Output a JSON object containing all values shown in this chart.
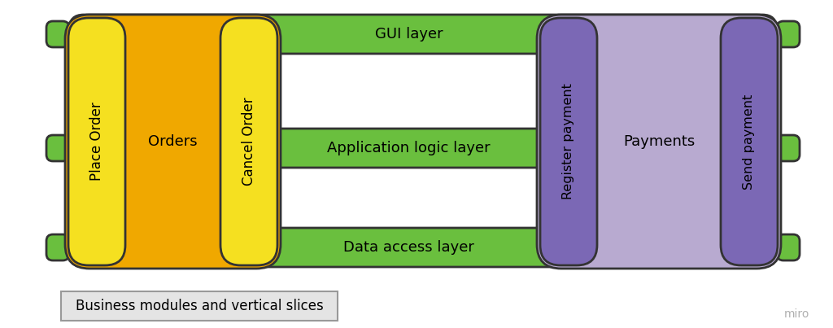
{
  "bg_color": "#ffffff",
  "fig_width": 10.24,
  "fig_height": 4.03,
  "green": "#6abf3e",
  "yellow": "#f5e020",
  "orange": "#f0a800",
  "purple_dark": "#7b68b5",
  "purple_light": "#b8aad0",
  "edge_color": "#333333",
  "caption": "Business modules and vertical slices",
  "miro_text": "miro",
  "layer_labels": [
    "GUI layer",
    "Application logic layer",
    "Data access layer"
  ]
}
